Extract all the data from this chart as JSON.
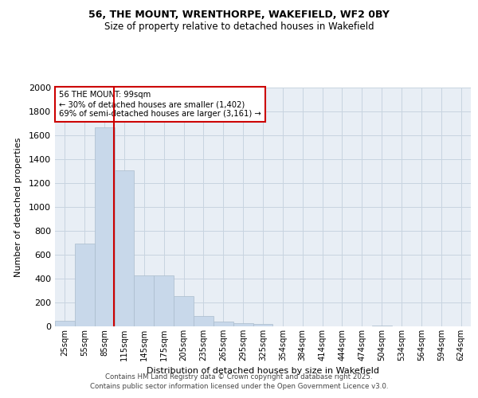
{
  "title1": "56, THE MOUNT, WRENTHORPE, WAKEFIELD, WF2 0BY",
  "title2": "Size of property relative to detached houses in Wakefield",
  "xlabel": "Distribution of detached houses by size in Wakefield",
  "ylabel": "Number of detached properties",
  "categories": [
    "25sqm",
    "55sqm",
    "85sqm",
    "115sqm",
    "145sqm",
    "175sqm",
    "205sqm",
    "235sqm",
    "265sqm",
    "295sqm",
    "325sqm",
    "354sqm",
    "384sqm",
    "414sqm",
    "444sqm",
    "474sqm",
    "504sqm",
    "534sqm",
    "564sqm",
    "594sqm",
    "624sqm"
  ],
  "values": [
    50,
    695,
    1670,
    1310,
    430,
    430,
    252,
    85,
    40,
    25,
    18,
    0,
    0,
    0,
    0,
    0,
    8,
    0,
    0,
    0,
    0
  ],
  "bar_color": "#c8d8ea",
  "bar_edge_color": "#aabccc",
  "vline_x": 2.47,
  "vline_color": "#cc0000",
  "annotation_text": "56 THE MOUNT: 99sqm\n← 30% of detached houses are smaller (1,402)\n69% of semi-detached houses are larger (3,161) →",
  "annotation_box_color": "#cc0000",
  "ylim": [
    0,
    2000
  ],
  "yticks": [
    0,
    200,
    400,
    600,
    800,
    1000,
    1200,
    1400,
    1600,
    1800,
    2000
  ],
  "grid_color": "#c8d4e0",
  "background_color": "#e8eef5",
  "footer1": "Contains HM Land Registry data © Crown copyright and database right 2025.",
  "footer2": "Contains public sector information licensed under the Open Government Licence v3.0."
}
